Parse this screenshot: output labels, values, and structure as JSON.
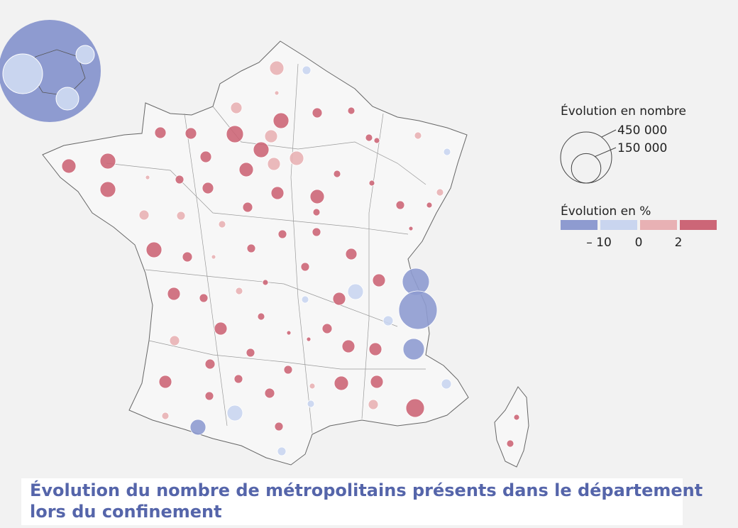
{
  "map": {
    "title_lines": [
      "Évolution du nombre de métropolitains présents dans le département",
      "lors du confinement"
    ],
    "size_legend": {
      "title": "Évolution en nombre",
      "items": [
        {
          "value": 450000,
          "label": "450 000"
        },
        {
          "value": 150000,
          "label": "150 000"
        }
      ]
    },
    "color_legend": {
      "title": "Évolution en %",
      "colors": [
        "#8e9bd0",
        "#c9d5ef",
        "#e8b1b4",
        "#cc6677"
      ],
      "breaks": [
        {
          "value": -10,
          "label": "– 10"
        },
        0,
        2
      ]
    }
  }
}
